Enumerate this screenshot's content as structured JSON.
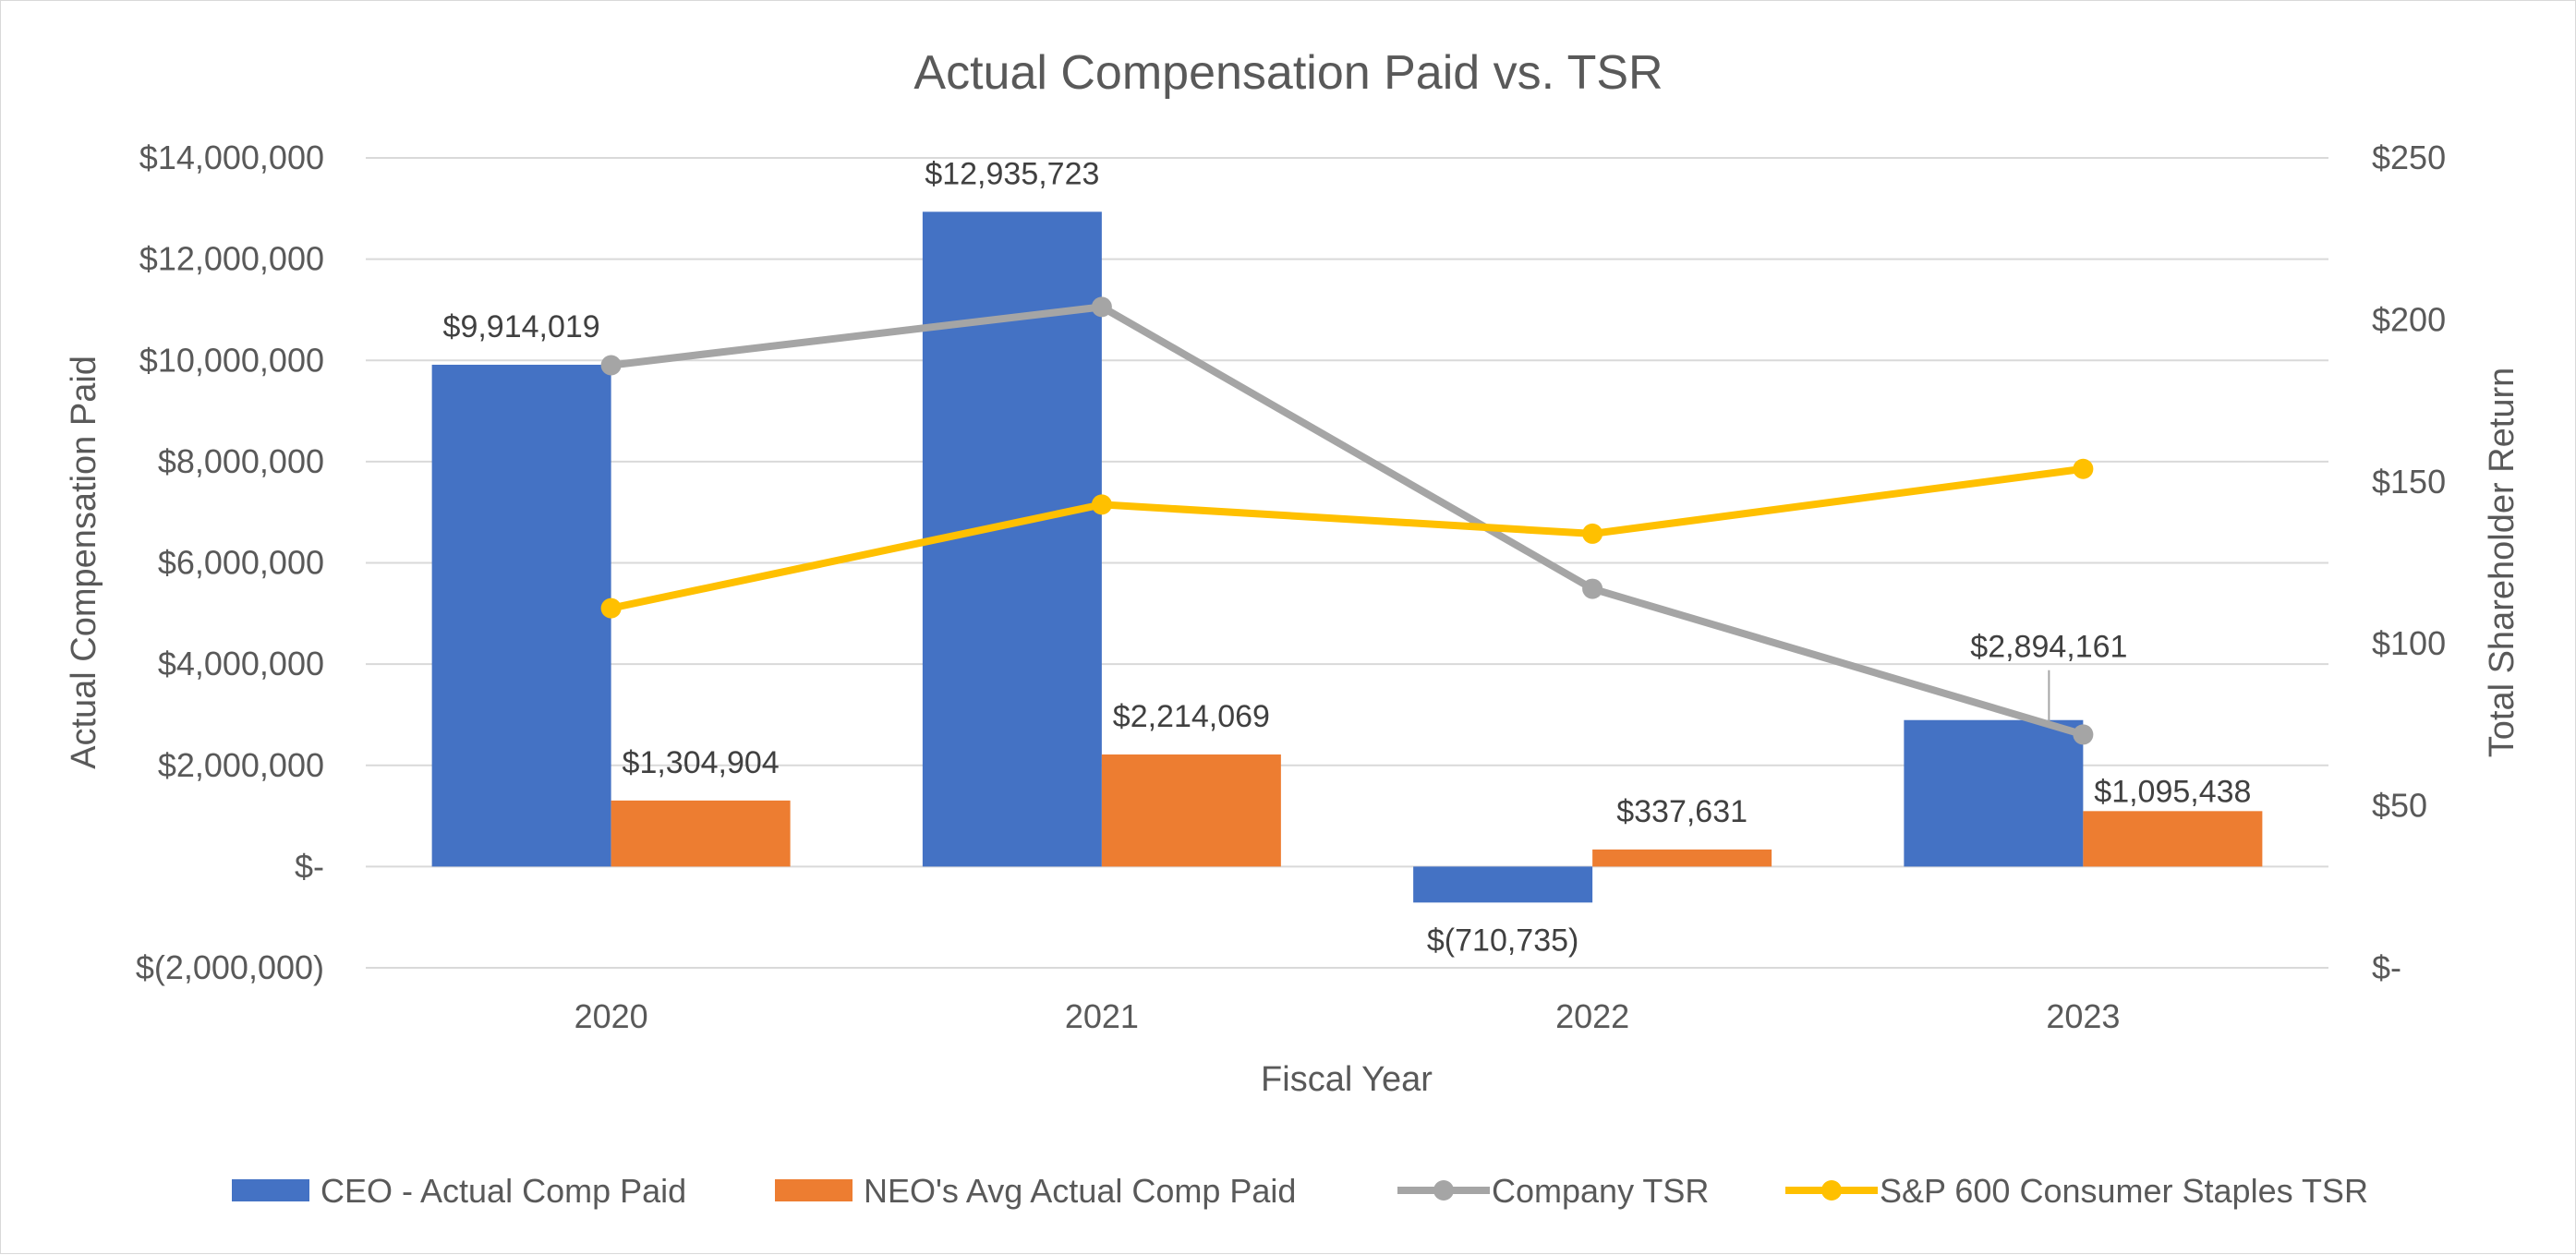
{
  "chart_data": {
    "type": "bar",
    "title": "Actual Compensation Paid vs. TSR",
    "xlabel": "Fiscal Year",
    "ylabel": "Actual Compensation Paid",
    "y2label": "Total Shareholder Return",
    "categories": [
      "2020",
      "2021",
      "2022",
      "2023"
    ],
    "ylim": [
      -2000000,
      14000000
    ],
    "y2lim": [
      0,
      250
    ],
    "y_ticks": [
      {
        "value": 14000000,
        "label": "$14,000,000"
      },
      {
        "value": 12000000,
        "label": "$12,000,000"
      },
      {
        "value": 10000000,
        "label": "$10,000,000"
      },
      {
        "value": 8000000,
        "label": "$8,000,000"
      },
      {
        "value": 6000000,
        "label": "$6,000,000"
      },
      {
        "value": 4000000,
        "label": "$4,000,000"
      },
      {
        "value": 2000000,
        "label": "$2,000,000"
      },
      {
        "value": 0,
        "label": "$-"
      },
      {
        "value": -2000000,
        "label": "$(2,000,000)"
      }
    ],
    "y2_ticks": [
      {
        "value": 250,
        "label": "$250"
      },
      {
        "value": 200,
        "label": "$200"
      },
      {
        "value": 150,
        "label": "$150"
      },
      {
        "value": 100,
        "label": "$100"
      },
      {
        "value": 50,
        "label": "$50"
      },
      {
        "value": 0,
        "label": "$-"
      }
    ],
    "grid": true,
    "legend_position": "bottom",
    "bar_series": [
      {
        "name": "CEO - Actual Comp Paid",
        "color": "#4472C4",
        "values": [
          9914019,
          12935723,
          -710735,
          2894161
        ],
        "labels": [
          "$9,914,019",
          "$12,935,723",
          "$(710,735)",
          "$2,894,161"
        ]
      },
      {
        "name": "NEO's Avg Actual Comp Paid",
        "color": "#ED7D31",
        "values": [
          1304904,
          2214069,
          337631,
          1095438
        ],
        "labels": [
          "$1,304,904",
          "$2,214,069",
          "$337,631",
          "$1,095,438"
        ]
      }
    ],
    "line_series": [
      {
        "name": "Company TSR",
        "color": "#A5A5A5",
        "axis": "secondary",
        "values": [
          186,
          204,
          117,
          72
        ]
      },
      {
        "name": "S&P 600 Consumer Staples TSR",
        "color": "#FFC000",
        "axis": "secondary",
        "values": [
          111,
          143,
          134,
          154
        ]
      }
    ]
  }
}
